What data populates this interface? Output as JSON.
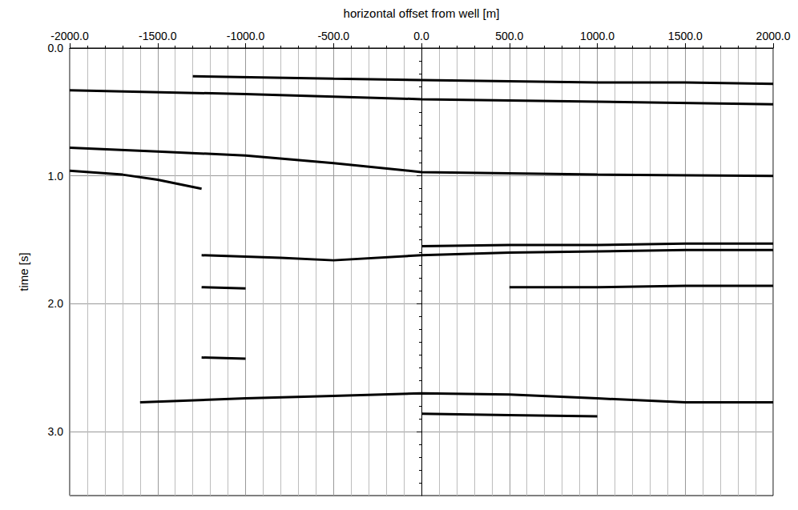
{
  "chart_data": {
    "type": "line",
    "x_label": "horizontal offset from well [m]",
    "y_label": "time [s]",
    "xlim": [
      -2000,
      2000
    ],
    "xticks": [
      {
        "value": -2000,
        "label": "-2000.0"
      },
      {
        "value": -1500,
        "label": "-1500.0"
      },
      {
        "value": -1000,
        "label": "-1000.0"
      },
      {
        "value": -500,
        "label": "-500.0"
      },
      {
        "value": 0,
        "label": "0.0"
      },
      {
        "value": 500,
        "label": "500.0"
      },
      {
        "value": 1000,
        "label": "1000.0"
      },
      {
        "value": 1500,
        "label": "1500.0"
      },
      {
        "value": 2000,
        "label": "2000.0"
      }
    ],
    "ylim": [
      0,
      3.5
    ],
    "yticks": [
      {
        "value": 0,
        "label": "0.0"
      },
      {
        "value": 1,
        "label": "1.0"
      },
      {
        "value": 2,
        "label": "2.0"
      },
      {
        "value": 3,
        "label": "3.0"
      }
    ],
    "grid": true,
    "color": "#000000",
    "line_style": "solid",
    "series": [
      {
        "x": [
          -1300,
          -500,
          0,
          500,
          1000,
          1500,
          2000
        ],
        "values": [
          0.22,
          0.24,
          0.25,
          0.26,
          0.27,
          0.27,
          0.28
        ]
      },
      {
        "x": [
          -2000,
          -1000,
          0,
          1000,
          2000
        ],
        "values": [
          0.33,
          0.36,
          0.4,
          0.42,
          0.44
        ]
      },
      {
        "x": [
          -2000,
          -1500,
          -1000,
          -500,
          0,
          1000,
          2000
        ],
        "values": [
          0.78,
          0.81,
          0.84,
          0.9,
          0.97,
          0.99,
          1.0
        ]
      },
      {
        "x": [
          -2000,
          -1700,
          -1500,
          -1250
        ],
        "values": [
          0.96,
          0.99,
          1.03,
          1.1
        ]
      },
      {
        "x": [
          -1250,
          -800,
          -500,
          0,
          500,
          1000,
          1500,
          2000
        ],
        "values": [
          1.62,
          1.64,
          1.66,
          1.62,
          1.6,
          1.59,
          1.58,
          1.58
        ]
      },
      {
        "x": [
          0,
          500,
          1000,
          1500,
          2000
        ],
        "values": [
          1.55,
          1.54,
          1.54,
          1.53,
          1.53
        ]
      },
      {
        "x": [
          -1250,
          -1000
        ],
        "values": [
          1.87,
          1.88
        ]
      },
      {
        "x": [
          500,
          1000,
          1500,
          2000
        ],
        "values": [
          1.87,
          1.87,
          1.86,
          1.86
        ]
      },
      {
        "x": [
          -1250,
          -1000
        ],
        "values": [
          2.42,
          2.43
        ]
      },
      {
        "x": [
          -1600,
          -1000,
          -500,
          0,
          500,
          1000,
          1500,
          2000
        ],
        "values": [
          2.77,
          2.74,
          2.72,
          2.7,
          2.71,
          2.74,
          2.77,
          2.77
        ]
      },
      {
        "x": [
          0,
          500,
          1000
        ],
        "values": [
          2.86,
          2.87,
          2.88
        ]
      }
    ]
  }
}
